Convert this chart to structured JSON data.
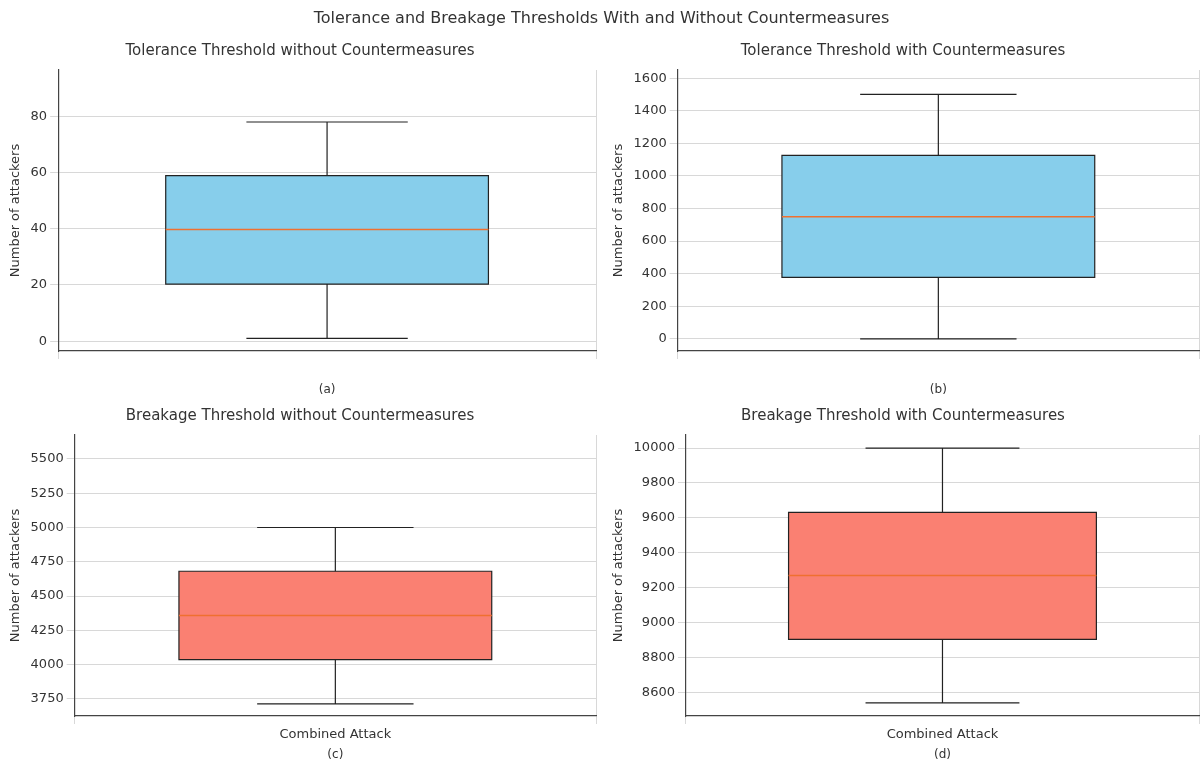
{
  "chart_data": [
    {
      "type": "box",
      "title": "Tolerance Threshold without Countermeasures",
      "xlabel": "(a)",
      "ylabel": "Number of attackers",
      "annotations": [
        "Tolerance and Breakage Thresholds With and Without Countermeasures"
      ],
      "categories": [
        null
      ],
      "series": [
        {
          "color": "#87ceeb",
          "boxes": [
            {
              "low": 1,
              "q1": 20.3,
              "median": 39.7,
              "q3": 58.9,
              "high": 78
            }
          ]
        }
      ],
      "ylim": [
        -3.5,
        96.5
      ],
      "yticks": [
        0,
        20,
        40,
        60,
        80
      ],
      "grid": true
    },
    {
      "type": "box",
      "title": "Tolerance Threshold with Countermeasures",
      "xlabel": "(b)",
      "ylabel": "Number of attackers",
      "categories": [
        null
      ],
      "series": [
        {
          "color": "#87ceeb",
          "boxes": [
            {
              "low": 0,
              "q1": 377,
              "median": 749,
              "q3": 1126,
              "high": 1500
            }
          ]
        }
      ],
      "ylim": [
        -75,
        1650
      ],
      "yticks": [
        0,
        200,
        400,
        600,
        800,
        1000,
        1200,
        1400,
        1600
      ],
      "grid": true
    },
    {
      "type": "box",
      "title": "Breakage Threshold without Countermeasures",
      "xlabel": "(c)",
      "ylabel": "Number of attackers",
      "categories": [
        "Combined Attack"
      ],
      "series": [
        {
          "color": "#fa8072",
          "boxes": [
            {
              "low": 3714,
              "q1": 4037,
              "median": 4358,
              "q3": 4681,
              "high": 5000
            }
          ]
        }
      ],
      "ylim": [
        3625,
        5675
      ],
      "yticks": [
        3750,
        4000,
        4250,
        4500,
        4750,
        5000,
        5250,
        5500
      ],
      "grid": true
    },
    {
      "type": "box",
      "title": "Breakage Threshold with Countermeasures",
      "xlabel": "(d)",
      "ylabel": "Number of attackers",
      "categories": [
        "Combined Attack"
      ],
      "series": [
        {
          "color": "#fa8072",
          "boxes": [
            {
              "low": 8540,
              "q1": 8904,
              "median": 9270,
              "q3": 9632,
              "high": 10000
            }
          ]
        }
      ],
      "ylim": [
        8465,
        10075
      ],
      "yticks": [
        8600,
        8800,
        9000,
        9200,
        9400,
        9600,
        9800,
        10000
      ],
      "grid": true
    }
  ]
}
